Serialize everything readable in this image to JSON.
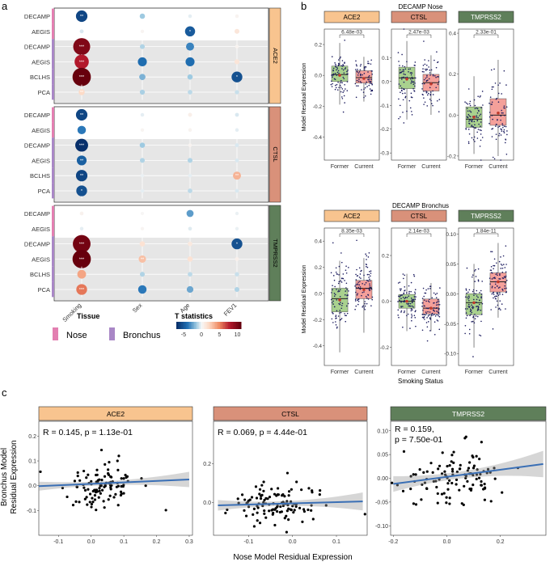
{
  "panel_letters": {
    "a": "a",
    "b": "b",
    "c": "c"
  },
  "chart_data": [
    {
      "id": "panel_a",
      "type": "heatmap",
      "title": "",
      "columns": [
        "Smoking",
        "Sex",
        "Age",
        "FEV1"
      ],
      "groups": [
        {
          "gene": "ACE2",
          "header_color": "#f8c48f",
          "rows": [
            {
              "label": "DECAMP",
              "tissue": "Nose",
              "t": [
                -6,
                -1.5,
                -0.3,
                0.3
              ],
              "sig": [
                "**",
                "",
                "",
                ""
              ]
            },
            {
              "label": "AEGIS",
              "tissue": "Nose",
              "t": [
                -0.5,
                0.2,
                -5,
                1.2
              ],
              "sig": [
                "",
                "",
                "*",
                ""
              ]
            },
            {
              "label": "DECAMP",
              "tissue": "Bronchus",
              "t": [
                10,
                -1.2,
                -3.5,
                0.3
              ],
              "sig": [
                "***",
                "",
                "",
                ""
              ]
            },
            {
              "label": "AEGIS",
              "tissue": "Bronchus",
              "t": [
                8,
                -4.2,
                -4.2,
                1.3
              ],
              "sig": [
                "***",
                "",
                "",
                ""
              ]
            },
            {
              "label": "BCLHS",
              "tissue": "Bronchus",
              "t": [
                11,
                -2.2,
                -1.5,
                -5.5
              ],
              "sig": [
                "***",
                "",
                "",
                "*"
              ]
            },
            {
              "label": "PCA",
              "tissue": "Bronchus",
              "t": [
                2,
                -1.3,
                -1,
                -0.8
              ],
              "sig": [
                "**",
                "",
                "",
                ""
              ]
            }
          ]
        },
        {
          "gene": "CTSL",
          "header_color": "#d9917a",
          "rows": [
            {
              "label": "DECAMP",
              "tissue": "Nose",
              "t": [
                -6,
                -0.3,
                0.6,
                -0.5
              ],
              "sig": [
                "**",
                "",
                "",
                ""
              ]
            },
            {
              "label": "AEGIS",
              "tissue": "Nose",
              "t": [
                -3.8,
                0.2,
                0.3,
                -0.3
              ],
              "sig": [
                "",
                "",
                "",
                ""
              ]
            },
            {
              "label": "DECAMP",
              "tissue": "Bronchus",
              "t": [
                -7,
                -1.5,
                0.3,
                -0.5
              ],
              "sig": [
                "***",
                "",
                "",
                ""
              ]
            },
            {
              "label": "AEGIS",
              "tissue": "Bronchus",
              "t": [
                -4.8,
                -1.2,
                -1.2,
                -0.5
              ],
              "sig": [
                "**",
                "",
                "",
                ""
              ]
            },
            {
              "label": "BCLHS",
              "tissue": "Bronchus",
              "t": [
                -6,
                -0.2,
                -0.3,
                3.5
              ],
              "sig": [
                "**",
                "",
                "",
                "**"
              ]
            },
            {
              "label": "PCA",
              "tissue": "Bronchus",
              "t": [
                -5.5,
                -0.3,
                -1,
                -0.5
              ],
              "sig": [
                "*",
                "",
                "",
                ""
              ]
            }
          ]
        },
        {
          "gene": "TMPRSS2",
          "header_color": "#5f7f5a",
          "rows": [
            {
              "label": "DECAMP",
              "tissue": "Nose",
              "t": [
                0.4,
                0.1,
                -2.8,
                -0.2
              ],
              "sig": [
                "",
                "",
                "",
                ""
              ]
            },
            {
              "label": "AEGIS",
              "tissue": "Nose",
              "t": [
                -0.3,
                0.2,
                -0.4,
                -0.2
              ],
              "sig": [
                "",
                "",
                "",
                ""
              ]
            },
            {
              "label": "DECAMP",
              "tissue": "Bronchus",
              "t": [
                10.5,
                1.5,
                1,
                -5.5
              ],
              "sig": [
                "***",
                "",
                "",
                "*"
              ]
            },
            {
              "label": "AEGIS",
              "tissue": "Bronchus",
              "t": [
                11,
                3,
                1.5,
                0.5
              ],
              "sig": [
                "***",
                "**",
                "",
                ""
              ]
            },
            {
              "label": "BCLHS",
              "tissue": "Bronchus",
              "t": [
                4,
                -1.2,
                -1,
                -0.8
              ],
              "sig": [
                "",
                "",
                "",
                ""
              ]
            },
            {
              "label": "PCA",
              "tissue": "Bronchus",
              "t": [
                5.5,
                -3.8,
                -2.5,
                -1.2
              ],
              "sig": [
                "***",
                "",
                "",
                ""
              ]
            }
          ]
        }
      ],
      "legend": {
        "tissue_title": "Tissue",
        "tissues": [
          {
            "name": "Nose",
            "color": "#e37fb1"
          },
          {
            "name": "Bronchus",
            "color": "#a987c6"
          }
        ],
        "t_title": "T statistics",
        "t_ticks": [
          "-5",
          "0",
          "5",
          "10"
        ],
        "t_range": [
          -7,
          11
        ]
      }
    },
    {
      "id": "panel_b",
      "type": "box",
      "ylabel": "Model Residual Expression",
      "xlabel": "Smoking Status",
      "categories": [
        "Former",
        "Current"
      ],
      "rows": [
        {
          "title": "DECAMP Nose",
          "facets": [
            {
              "gene": "ACE2",
              "header_color": "#f8c48f",
              "pvalue": "6.48e-03",
              "ylim": [
                -0.55,
                0.3
              ],
              "ticks": [
                -0.4,
                -0.2,
                0.0,
                0.2
              ],
              "tick_labels": [
                "-0.4",
                "-0.2",
                "0.0",
                "0.2"
              ],
              "boxes": [
                {
                  "q1": -0.04,
                  "med": 0.005,
                  "q3": 0.06,
                  "lo": -0.19,
                  "hi": 0.21,
                  "mean": 0.0,
                  "n": 80
                },
                {
                  "q1": -0.05,
                  "med": -0.015,
                  "q3": 0.03,
                  "lo": -0.17,
                  "hi": 0.12,
                  "mean": -0.02,
                  "n": 70
                }
              ]
            },
            {
              "gene": "CTSL",
              "header_color": "#d9917a",
              "pvalue": "2.47e-03",
              "ylim": [
                -0.33,
                0.22
              ],
              "ticks": [
                -0.3,
                -0.2,
                -0.1,
                0.0,
                0.1
              ],
              "tick_labels": [
                "-0.3",
                "-0.2",
                "-0.1",
                "0.0",
                "0.1"
              ],
              "boxes": [
                {
                  "q1": -0.03,
                  "med": 0.015,
                  "q3": 0.06,
                  "lo": -0.16,
                  "hi": 0.17,
                  "mean": 0.01,
                  "n": 80
                },
                {
                  "q1": -0.04,
                  "med": -0.005,
                  "q3": 0.03,
                  "lo": -0.14,
                  "hi": 0.11,
                  "mean": -0.01,
                  "n": 70
                }
              ]
            },
            {
              "gene": "TMPRSS2",
              "header_color": "#5f7f5a",
              "pvalue": "2.33e-01",
              "ylim": [
                -0.22,
                0.42
              ],
              "ticks": [
                -0.2,
                0.0,
                0.2,
                0.4
              ],
              "tick_labels": [
                "-0.2",
                "0.0",
                "0.2",
                "0.4"
              ],
              "boxes": [
                {
                  "q1": -0.06,
                  "med": -0.02,
                  "q3": 0.04,
                  "lo": -0.19,
                  "hi": 0.19,
                  "mean": -0.01,
                  "n": 80
                },
                {
                  "q1": -0.05,
                  "med": 0.0,
                  "q3": 0.08,
                  "lo": -0.2,
                  "hi": 0.27,
                  "mean": 0.01,
                  "n": 70
                }
              ]
            }
          ]
        },
        {
          "title": "DECAMP Bronchus",
          "facets": [
            {
              "gene": "ACE2",
              "header_color": "#f8c48f",
              "pvalue": "8.35e-03",
              "ylim": [
                -0.55,
                0.5
              ],
              "ticks": [
                -0.4,
                -0.2,
                0.0,
                0.2,
                0.4
              ],
              "tick_labels": [
                "-0.4",
                "-0.2",
                "0.0",
                "0.2",
                "0.4"
              ],
              "boxes": [
                {
                  "q1": -0.14,
                  "med": -0.04,
                  "q3": 0.04,
                  "lo": -0.45,
                  "hi": 0.25,
                  "mean": -0.05,
                  "n": 90
                },
                {
                  "q1": -0.04,
                  "med": 0.04,
                  "q3": 0.1,
                  "lo": -0.3,
                  "hi": 0.27,
                  "mean": 0.03,
                  "n": 90
                }
              ]
            },
            {
              "gene": "CTSL",
              "header_color": "#d9917a",
              "pvalue": "2.14e-03",
              "ylim": [
                -0.28,
                0.32
              ],
              "ticks": [
                -0.2,
                0.0,
                0.2
              ],
              "tick_labels": [
                "-0.2",
                "0.0",
                "0.2"
              ],
              "boxes": [
                {
                  "q1": -0.03,
                  "med": 0.0,
                  "q3": 0.03,
                  "lo": -0.13,
                  "hi": 0.12,
                  "mean": 0.0,
                  "n": 90
                },
                {
                  "q1": -0.055,
                  "med": -0.03,
                  "q3": 0.01,
                  "lo": -0.13,
                  "hi": 0.08,
                  "mean": -0.03,
                  "n": 90
                }
              ]
            },
            {
              "gene": "TMPRSS2",
              "header_color": "#5f7f5a",
              "pvalue": "1.84e-11",
              "ylim": [
                -0.12,
                0.11
              ],
              "ticks": [
                -0.1,
                -0.05,
                0.0,
                0.05,
                0.1
              ],
              "tick_labels": [
                "-0.10",
                "-0.05",
                "0.00",
                "0.05",
                "0.10"
              ],
              "boxes": [
                {
                  "q1": -0.035,
                  "med": -0.015,
                  "q3": 0.0,
                  "lo": -0.09,
                  "hi": 0.05,
                  "mean": -0.015,
                  "n": 90
                },
                {
                  "q1": 0.003,
                  "med": 0.02,
                  "q3": 0.035,
                  "lo": -0.04,
                  "hi": 0.085,
                  "mean": 0.02,
                  "n": 90
                }
              ]
            }
          ]
        }
      ]
    },
    {
      "id": "panel_c",
      "type": "scatter",
      "ylabel": "Bronchus Model\nResidual Expression",
      "xlabel": "Nose Model Residual Expression",
      "facets": [
        {
          "gene": "ACE2",
          "header_color": "#f8c48f",
          "annotation": "R = 0.145, p = 1.13e-01",
          "xlim": [
            -0.16,
            0.31
          ],
          "ylim": [
            -0.2,
            0.26
          ],
          "xticks": [
            -0.1,
            0.0,
            0.1,
            0.2,
            0.3
          ],
          "xtick_labels": [
            "-0.1",
            "0.0",
            "0.1",
            "0.2",
            "0.3"
          ],
          "yticks": [
            -0.1,
            0.0,
            0.1,
            0.2
          ],
          "ytick_labels": [
            "-0.1",
            "0.0",
            "0.1",
            "0.2"
          ],
          "fit": {
            "x": [
              -0.16,
              0.3
            ],
            "y": [
              -0.002,
              0.025
            ],
            "band": 0.02
          },
          "n": 110,
          "seed": 11,
          "sx": 0.06,
          "sy": 0.06
        },
        {
          "gene": "CTSL",
          "header_color": "#d9917a",
          "annotation": "R = 0.069, p = 4.44e-01",
          "xlim": [
            -0.18,
            0.17
          ],
          "ylim": [
            -0.17,
            0.42
          ],
          "xticks": [
            -0.1,
            0.0,
            0.1
          ],
          "xtick_labels": [
            "-0.1",
            "0.0",
            "0.1"
          ],
          "yticks": [
            0.0,
            0.2
          ],
          "ytick_labels": [
            "0.0",
            "0.2"
          ],
          "fit": {
            "x": [
              -0.17,
              0.16
            ],
            "y": [
              -0.015,
              0.005
            ],
            "band": 0.03
          },
          "n": 110,
          "seed": 23,
          "sx": 0.06,
          "sy": 0.07
        },
        {
          "gene": "TMPRSS2",
          "header_color": "#5f7f5a",
          "annotation_lines": [
            "R = 0.159,",
            "p = 7.50e-01"
          ],
          "xlim": [
            -0.21,
            0.37
          ],
          "ylim": [
            -0.12,
            0.12
          ],
          "xticks": [
            -0.2,
            0.0,
            0.2
          ],
          "xtick_labels": [
            "-0.2",
            "0.0",
            "0.2"
          ],
          "yticks": [
            -0.1,
            -0.05,
            0.0,
            0.05,
            0.1
          ],
          "ytick_labels": [
            "-0.10",
            "-0.05",
            "0.00",
            "0.05",
            "0.10"
          ],
          "fit": {
            "x": [
              -0.2,
              0.36
            ],
            "y": [
              -0.012,
              0.03
            ],
            "band": 0.018
          },
          "n": 110,
          "seed": 37,
          "sx": 0.1,
          "sy": 0.04
        }
      ]
    }
  ]
}
